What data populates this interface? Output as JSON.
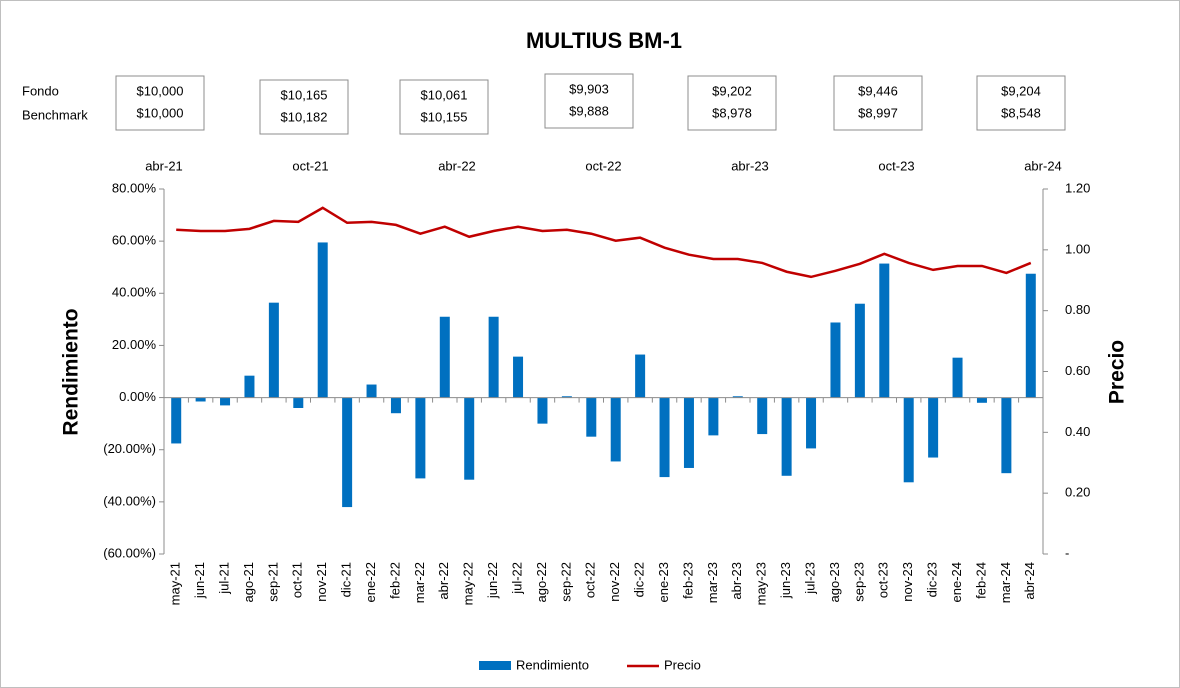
{
  "chart_data": {
    "type": "bar_line",
    "title": "MULTIUS BM-1",
    "box_row_labels": [
      "Fondo",
      "Benchmark"
    ],
    "boxes": [
      {
        "fondo": "$10,000",
        "benchmark": "$10,000"
      },
      {
        "fondo": "$10,165",
        "benchmark": "$10,182"
      },
      {
        "fondo": "$10,061",
        "benchmark": "$10,155"
      },
      {
        "fondo": "$9,903",
        "benchmark": "$9,888"
      },
      {
        "fondo": "$9,202",
        "benchmark": "$8,978"
      },
      {
        "fondo": "$9,446",
        "benchmark": "$8,997"
      },
      {
        "fondo": "$9,204",
        "benchmark": "$8,548"
      }
    ],
    "top_axis_labels": [
      "abr-21",
      "oct-21",
      "abr-22",
      "oct-22",
      "abr-23",
      "oct-23",
      "abr-24"
    ],
    "y_label": "Rendimiento",
    "y2_label": "Precio",
    "categories": [
      "may-21",
      "jun-21",
      "jul-21",
      "ago-21",
      "sep-21",
      "oct-21",
      "nov-21",
      "dic-21",
      "ene-22",
      "feb-22",
      "mar-22",
      "abr-22",
      "may-22",
      "jun-22",
      "jul-22",
      "ago-22",
      "sep-22",
      "oct-22",
      "nov-22",
      "dic-22",
      "ene-23",
      "feb-23",
      "mar-23",
      "abr-23",
      "may-23",
      "jun-23",
      "jul-23",
      "ago-23",
      "sep-23",
      "oct-23",
      "nov-23",
      "dic-23",
      "ene-24",
      "feb-24",
      "mar-24",
      "abr-24"
    ],
    "series": [
      {
        "name": "Rendimiento",
        "color": "#0070c0",
        "type": "bar",
        "values": [
          -17.6,
          -1.5,
          -3,
          8.4,
          36.4,
          -4,
          59.5,
          -42,
          5,
          -6,
          -31,
          31,
          -31.5,
          31,
          15.7,
          -10,
          0.5,
          -15,
          -24.5,
          16.5,
          -30.5,
          -27,
          -14.5,
          0.5,
          -14,
          -30,
          -19.5,
          28.8,
          36,
          51.4,
          -32.5,
          -23,
          15.3,
          -2,
          -29,
          47.5
        ]
      },
      {
        "name": "Precio",
        "color": "#c00000",
        "type": "line",
        "axis": "y2",
        "values": [
          1.066,
          1.062,
          1.062,
          1.069,
          1.095,
          1.092,
          1.138,
          1.089,
          1.092,
          1.082,
          1.053,
          1.076,
          1.043,
          1.062,
          1.076,
          1.062,
          1.066,
          1.053,
          1.03,
          1.04,
          1.007,
          0.984,
          0.97,
          0.97,
          0.957,
          0.928,
          0.911,
          0.931,
          0.954,
          0.987,
          0.957,
          0.934,
          0.947,
          0.947,
          0.924,
          0.957
        ]
      }
    ],
    "ylim": [
      -60,
      80
    ],
    "yticks": [
      {
        "value": -60,
        "label": "(60.00%)"
      },
      {
        "value": -40,
        "label": "(40.00%)"
      },
      {
        "value": -20,
        "label": "(20.00%)"
      },
      {
        "value": 0,
        "label": "0.00%"
      },
      {
        "value": 20,
        "label": "20.00%"
      },
      {
        "value": 40,
        "label": "40.00%"
      },
      {
        "value": 60,
        "label": "60.00%"
      },
      {
        "value": 80,
        "label": "80.00%"
      }
    ],
    "negative_tick_color": "#ff0000",
    "y2lim": [
      0,
      1.2
    ],
    "y2ticks": [
      {
        "value": 0,
        "label": "-"
      },
      {
        "value": 0.2,
        "label": "0.20"
      },
      {
        "value": 0.4,
        "label": "0.40"
      },
      {
        "value": 0.6,
        "label": "0.60"
      },
      {
        "value": 0.8,
        "label": "0.80"
      },
      {
        "value": 1.0,
        "label": "1.00"
      },
      {
        "value": 1.2,
        "label": "1.20"
      }
    ],
    "grid": false,
    "legend": "bottom"
  }
}
